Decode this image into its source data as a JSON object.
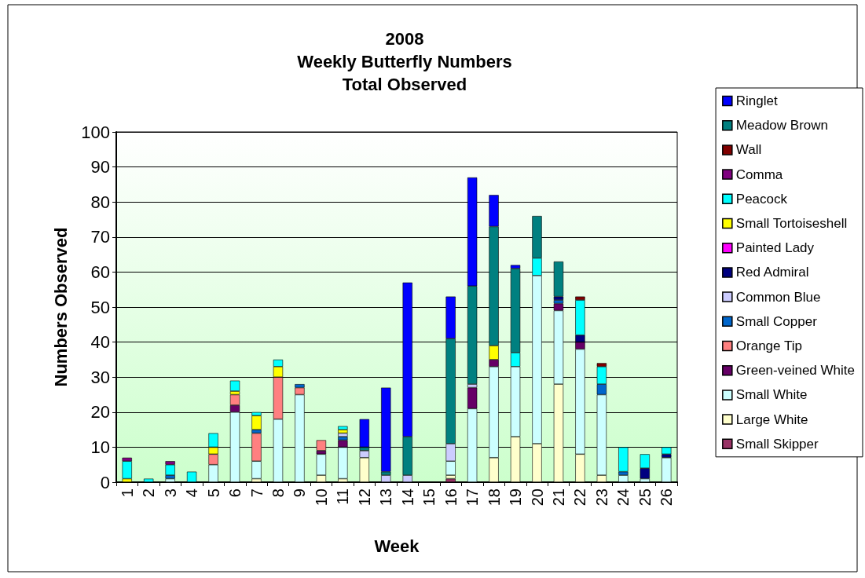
{
  "chart_data": {
    "type": "bar",
    "title": "2008\nWeekly Butterfly Numbers\nTotal Observed",
    "xlabel": "Week",
    "ylabel": "Numbers Observed",
    "categories": [
      "1",
      "2",
      "3",
      "4",
      "5",
      "6",
      "7",
      "8",
      "9",
      "10",
      "11",
      "12",
      "13",
      "14",
      "15",
      "16",
      "17",
      "18",
      "19",
      "20",
      "21",
      "22",
      "23",
      "24",
      "25",
      "26"
    ],
    "stacked": true,
    "ylim": [
      0,
      100
    ],
    "yticks": [
      0,
      10,
      20,
      30,
      40,
      50,
      60,
      70,
      80,
      90,
      100
    ],
    "grid": "y",
    "legend": "right",
    "series": [
      {
        "name": "Small Skipper",
        "color": "#993366",
        "values": [
          null,
          null,
          null,
          null,
          null,
          null,
          null,
          null,
          null,
          null,
          null,
          null,
          null,
          null,
          null,
          1,
          null,
          null,
          null,
          null,
          null,
          null,
          null,
          null,
          null,
          null
        ]
      },
      {
        "name": "Large White",
        "color": "#ffffcc",
        "values": [
          null,
          null,
          null,
          null,
          null,
          null,
          1,
          null,
          null,
          2,
          1,
          7,
          null,
          null,
          null,
          1,
          null,
          7,
          13,
          11,
          28,
          8,
          2,
          null,
          null,
          null
        ]
      },
      {
        "name": "Small White",
        "color": "#ccffff",
        "values": [
          null,
          null,
          1,
          null,
          5,
          20,
          5,
          18,
          25,
          6,
          9,
          null,
          null,
          null,
          null,
          4,
          21,
          26,
          20,
          48,
          21,
          30,
          23,
          2,
          1,
          7
        ]
      },
      {
        "name": "Green-veined White",
        "color": "#660066",
        "values": [
          null,
          null,
          null,
          null,
          null,
          2,
          null,
          null,
          null,
          1,
          2,
          null,
          null,
          null,
          null,
          null,
          6,
          2,
          null,
          null,
          2,
          2,
          null,
          null,
          null,
          null
        ]
      },
      {
        "name": "Orange Tip",
        "color": "#ff8080",
        "values": [
          null,
          null,
          null,
          null,
          3,
          3,
          8,
          12,
          2,
          3,
          null,
          null,
          null,
          null,
          null,
          null,
          null,
          null,
          null,
          null,
          null,
          null,
          null,
          null,
          null,
          null
        ]
      },
      {
        "name": "Small Copper",
        "color": "#0066cc",
        "values": [
          null,
          null,
          1,
          null,
          null,
          null,
          1,
          null,
          1,
          null,
          1,
          null,
          null,
          null,
          null,
          null,
          null,
          null,
          null,
          null,
          1,
          null,
          3,
          1,
          null,
          null
        ]
      },
      {
        "name": "Common Blue",
        "color": "#ccccff",
        "values": [
          null,
          null,
          null,
          null,
          null,
          null,
          null,
          null,
          null,
          null,
          1,
          2,
          2,
          2,
          null,
          5,
          1,
          null,
          null,
          null,
          null,
          null,
          null,
          null,
          null,
          null
        ]
      },
      {
        "name": "Red Admiral",
        "color": "#000080",
        "values": [
          null,
          null,
          null,
          null,
          null,
          null,
          null,
          null,
          null,
          null,
          null,
          null,
          null,
          null,
          null,
          null,
          null,
          null,
          null,
          null,
          1,
          2,
          null,
          null,
          3,
          1
        ]
      },
      {
        "name": "Painted Lady",
        "color": "#ff00ff",
        "values": [
          null,
          null,
          null,
          null,
          null,
          null,
          null,
          null,
          null,
          null,
          null,
          null,
          null,
          null,
          null,
          null,
          null,
          null,
          null,
          null,
          null,
          null,
          null,
          null,
          null,
          null
        ]
      },
      {
        "name": "Small Tortoiseshell",
        "color": "#ffff00",
        "values": [
          1,
          null,
          null,
          null,
          2,
          1,
          4,
          3,
          null,
          null,
          1,
          null,
          null,
          null,
          null,
          null,
          null,
          4,
          null,
          null,
          null,
          null,
          null,
          null,
          null,
          null
        ]
      },
      {
        "name": "Peacock",
        "color": "#00ffff",
        "values": [
          5,
          1,
          3,
          3,
          4,
          3,
          1,
          2,
          null,
          null,
          1,
          null,
          null,
          null,
          null,
          null,
          null,
          null,
          4,
          5,
          null,
          10,
          5,
          7,
          4,
          2
        ]
      },
      {
        "name": "Comma",
        "color": "#800080",
        "values": [
          1,
          null,
          1,
          null,
          null,
          null,
          null,
          null,
          null,
          null,
          null,
          null,
          null,
          null,
          null,
          null,
          null,
          null,
          null,
          null,
          null,
          null,
          null,
          null,
          null,
          null
        ]
      },
      {
        "name": "Wall",
        "color": "#800000",
        "values": [
          null,
          null,
          null,
          null,
          null,
          null,
          null,
          null,
          null,
          null,
          null,
          null,
          null,
          null,
          null,
          null,
          null,
          null,
          null,
          null,
          null,
          1,
          1,
          null,
          null,
          null
        ]
      },
      {
        "name": "Meadow Brown",
        "color": "#008080",
        "values": [
          null,
          null,
          null,
          null,
          null,
          null,
          null,
          null,
          null,
          null,
          null,
          1,
          1,
          11,
          null,
          30,
          28,
          34,
          24,
          12,
          10,
          null,
          null,
          null,
          null,
          null
        ]
      },
      {
        "name": "Ringlet",
        "color": "#0000ff",
        "values": [
          null,
          null,
          null,
          null,
          null,
          null,
          null,
          null,
          null,
          null,
          null,
          8,
          24,
          44,
          null,
          12,
          31,
          9,
          1,
          null,
          null,
          null,
          null,
          null,
          null,
          null
        ]
      }
    ]
  }
}
